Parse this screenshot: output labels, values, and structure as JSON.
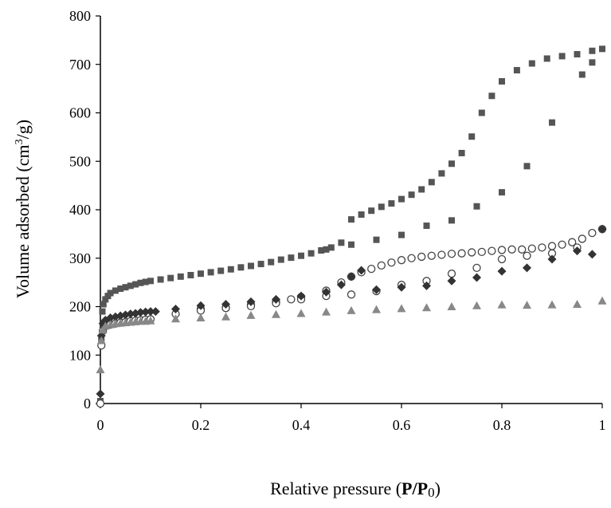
{
  "chart_data": {
    "type": "scatter",
    "title": "",
    "xlabel": {
      "prefix": "Relative pressure (",
      "p": "P",
      "slash": "/",
      "p0": "P",
      "sub": "0",
      "suffix": ")"
    },
    "ylabel": {
      "prefix": "Volume adsorbed (cm",
      "sup": "3",
      "suffix": "/g)"
    },
    "xlim": [
      0,
      1
    ],
    "ylim": [
      0,
      800
    ],
    "xticks": [
      "0",
      "0.2",
      "0.4",
      "0.6",
      "0.8",
      "1"
    ],
    "yticks": [
      "0",
      "100",
      "200",
      "300",
      "400",
      "500",
      "600",
      "700",
      "800"
    ],
    "grid": false,
    "legend": "none",
    "series": [
      {
        "marker": "square",
        "color": "#555555",
        "points": [
          [
            0,
            5
          ],
          [
            0.002,
            130
          ],
          [
            0.004,
            190
          ],
          [
            0.006,
            205
          ],
          [
            0.01,
            215
          ],
          [
            0.015,
            222
          ],
          [
            0.02,
            228
          ],
          [
            0.03,
            233
          ],
          [
            0.04,
            237
          ],
          [
            0.05,
            240
          ],
          [
            0.06,
            243
          ],
          [
            0.07,
            246
          ],
          [
            0.08,
            249
          ],
          [
            0.09,
            251
          ],
          [
            0.1,
            253
          ],
          [
            0.12,
            256
          ],
          [
            0.14,
            259
          ],
          [
            0.16,
            262
          ],
          [
            0.18,
            265
          ],
          [
            0.2,
            268
          ],
          [
            0.22,
            271
          ],
          [
            0.24,
            274
          ],
          [
            0.26,
            277
          ],
          [
            0.28,
            281
          ],
          [
            0.3,
            284
          ],
          [
            0.32,
            288
          ],
          [
            0.34,
            292
          ],
          [
            0.36,
            297
          ],
          [
            0.38,
            301
          ],
          [
            0.4,
            305
          ],
          [
            0.42,
            310
          ],
          [
            0.44,
            316
          ],
          [
            0.46,
            322
          ],
          [
            0.48,
            332
          ],
          [
            0.5,
            380
          ],
          [
            0.52,
            390
          ],
          [
            0.54,
            398
          ],
          [
            0.56,
            406
          ],
          [
            0.58,
            413
          ],
          [
            0.6,
            422
          ],
          [
            0.62,
            431
          ],
          [
            0.64,
            442
          ],
          [
            0.66,
            457
          ],
          [
            0.68,
            475
          ],
          [
            0.7,
            495
          ],
          [
            0.72,
            517
          ],
          [
            0.74,
            551
          ],
          [
            0.76,
            600
          ],
          [
            0.78,
            635
          ],
          [
            0.8,
            665
          ],
          [
            0.83,
            688
          ],
          [
            0.86,
            702
          ],
          [
            0.89,
            712
          ],
          [
            0.92,
            717
          ],
          [
            0.95,
            721
          ],
          [
            0.98,
            728
          ],
          [
            1,
            732
          ],
          [
            0.98,
            704
          ],
          [
            0.96,
            679
          ],
          [
            0.9,
            580
          ],
          [
            0.85,
            490
          ],
          [
            0.8,
            436
          ],
          [
            0.75,
            407
          ],
          [
            0.7,
            378
          ],
          [
            0.65,
            367
          ],
          [
            0.6,
            348
          ],
          [
            0.55,
            338
          ],
          [
            0.5,
            328
          ],
          [
            0.45,
            318
          ]
        ]
      },
      {
        "marker": "circle-open",
        "color": "#444444",
        "points": [
          [
            0,
            0
          ],
          [
            0.002,
            120
          ],
          [
            0.005,
            150
          ],
          [
            0.01,
            160
          ],
          [
            0.02,
            163
          ],
          [
            0.03,
            165
          ],
          [
            0.04,
            167
          ],
          [
            0.05,
            168
          ],
          [
            0.06,
            170
          ],
          [
            0.07,
            171
          ],
          [
            0.08,
            172
          ],
          [
            0.09,
            173
          ],
          [
            0.1,
            174
          ],
          [
            0.15,
            185
          ],
          [
            0.2,
            195
          ],
          [
            0.25,
            198
          ],
          [
            0.3,
            204
          ],
          [
            0.35,
            210
          ],
          [
            0.38,
            215
          ],
          [
            0.4,
            220
          ],
          [
            0.45,
            233
          ],
          [
            0.48,
            250
          ],
          [
            0.5,
            262
          ],
          [
            0.52,
            271
          ],
          [
            0.54,
            278
          ],
          [
            0.56,
            285
          ],
          [
            0.58,
            291
          ],
          [
            0.6,
            296
          ],
          [
            0.62,
            300
          ],
          [
            0.64,
            303
          ],
          [
            0.66,
            305
          ],
          [
            0.68,
            307
          ],
          [
            0.7,
            309
          ],
          [
            0.72,
            310
          ],
          [
            0.74,
            312
          ],
          [
            0.76,
            313
          ],
          [
            0.78,
            315
          ],
          [
            0.8,
            317
          ],
          [
            0.82,
            318
          ],
          [
            0.84,
            318
          ],
          [
            0.86,
            320
          ],
          [
            0.88,
            322
          ],
          [
            0.9,
            325
          ],
          [
            0.92,
            328
          ],
          [
            0.94,
            333
          ],
          [
            0.96,
            340
          ],
          [
            0.98,
            352
          ],
          [
            1,
            360
          ],
          [
            0.95,
            322
          ],
          [
            0.9,
            310
          ],
          [
            0.85,
            305
          ],
          [
            0.8,
            298
          ],
          [
            0.75,
            280
          ],
          [
            0.7,
            268
          ],
          [
            0.65,
            253
          ],
          [
            0.6,
            245
          ],
          [
            0.55,
            232
          ],
          [
            0.5,
            225
          ],
          [
            0.45,
            222
          ],
          [
            0.4,
            215
          ],
          [
            0.35,
            207
          ],
          [
            0.3,
            201
          ],
          [
            0.25,
            197
          ],
          [
            0.2,
            192
          ]
        ]
      },
      {
        "marker": "diamond",
        "color": "#333333",
        "points": [
          [
            0,
            20
          ],
          [
            0.002,
            140
          ],
          [
            0.005,
            165
          ],
          [
            0.01,
            172
          ],
          [
            0.02,
            177
          ],
          [
            0.03,
            179
          ],
          [
            0.04,
            181
          ],
          [
            0.05,
            183
          ],
          [
            0.06,
            185
          ],
          [
            0.07,
            186
          ],
          [
            0.08,
            188
          ],
          [
            0.09,
            189
          ],
          [
            0.1,
            190
          ],
          [
            0.11,
            190
          ],
          [
            0.15,
            195
          ],
          [
            0.2,
            202
          ],
          [
            0.25,
            205
          ],
          [
            0.3,
            210
          ],
          [
            0.35,
            215
          ],
          [
            0.4,
            222
          ],
          [
            0.45,
            230
          ],
          [
            0.48,
            245
          ],
          [
            0.5,
            262
          ],
          [
            0.52,
            275
          ],
          [
            0.55,
            235
          ],
          [
            0.6,
            240
          ],
          [
            0.65,
            243
          ],
          [
            0.7,
            253
          ],
          [
            0.75,
            260
          ],
          [
            0.8,
            273
          ],
          [
            0.85,
            280
          ],
          [
            0.9,
            298
          ],
          [
            0.95,
            315
          ],
          [
            0.98,
            308
          ],
          [
            1,
            360
          ]
        ]
      },
      {
        "marker": "triangle",
        "color": "#888888",
        "points": [
          [
            0,
            70
          ],
          [
            0.002,
            130
          ],
          [
            0.005,
            152
          ],
          [
            0.01,
            160
          ],
          [
            0.02,
            163
          ],
          [
            0.03,
            165
          ],
          [
            0.04,
            166
          ],
          [
            0.05,
            167
          ],
          [
            0.06,
            168
          ],
          [
            0.07,
            169
          ],
          [
            0.08,
            170
          ],
          [
            0.09,
            170
          ],
          [
            0.1,
            171
          ],
          [
            0.15,
            175
          ],
          [
            0.2,
            177
          ],
          [
            0.25,
            179
          ],
          [
            0.3,
            182
          ],
          [
            0.35,
            184
          ],
          [
            0.4,
            186
          ],
          [
            0.45,
            189
          ],
          [
            0.5,
            192
          ],
          [
            0.55,
            194
          ],
          [
            0.6,
            196
          ],
          [
            0.65,
            198
          ],
          [
            0.7,
            200
          ],
          [
            0.75,
            202
          ],
          [
            0.8,
            204
          ],
          [
            0.85,
            203
          ],
          [
            0.9,
            204
          ],
          [
            0.95,
            205
          ],
          [
            1,
            212
          ]
        ]
      }
    ]
  }
}
